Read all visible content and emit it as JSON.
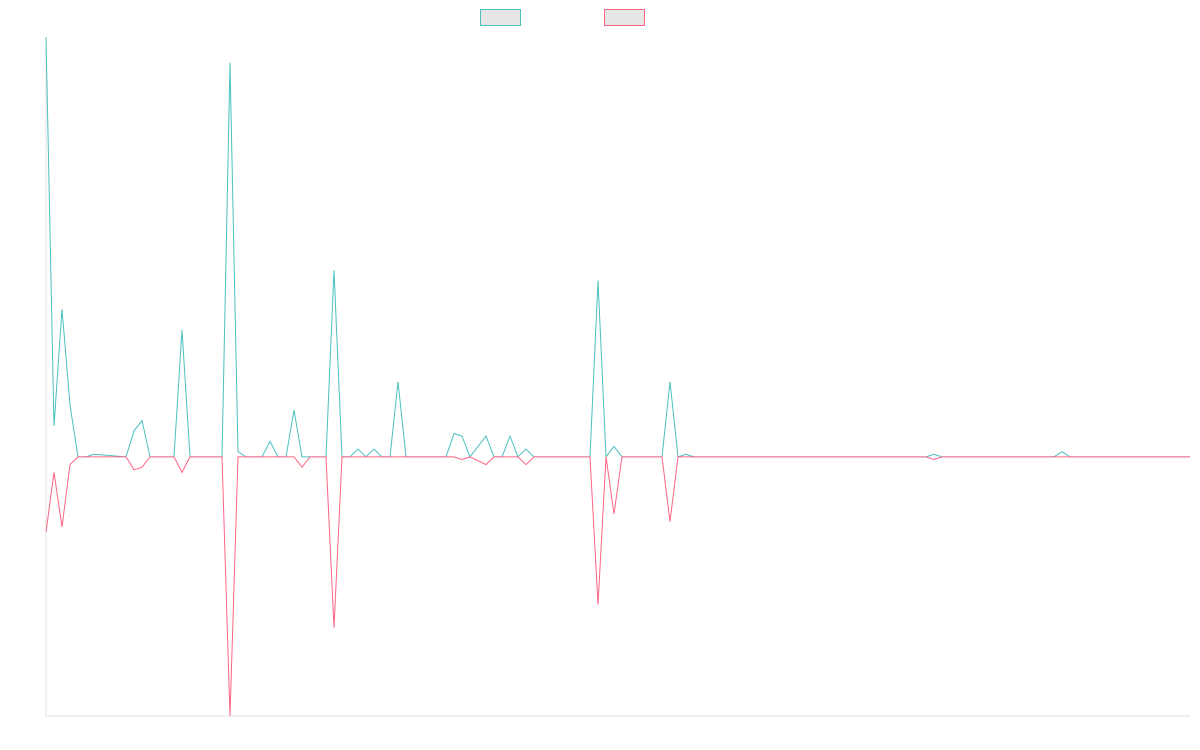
{
  "chart_data": {
    "type": "line",
    "title": "",
    "xlabel": "",
    "ylabel": "",
    "grid": false,
    "legend_position": "top-center",
    "ylim": [
      -100,
      162
    ],
    "x_count": 143,
    "series": [
      {
        "color": "#4bc0c0",
        "fill": "#e6e6e6",
        "points": [
          [
            0,
            162
          ],
          [
            1,
            12
          ],
          [
            2,
            57
          ],
          [
            3,
            20
          ],
          [
            4,
            0
          ],
          [
            5,
            0
          ],
          [
            6,
            1
          ],
          [
            10,
            0
          ],
          [
            11,
            10
          ],
          [
            12,
            14
          ],
          [
            13,
            0
          ],
          [
            16,
            0
          ],
          [
            17,
            49
          ],
          [
            18,
            0
          ],
          [
            19,
            0
          ],
          [
            20,
            0
          ],
          [
            22,
            0
          ],
          [
            23,
            152
          ],
          [
            24,
            2
          ],
          [
            25,
            0
          ],
          [
            27,
            0
          ],
          [
            28,
            6
          ],
          [
            29,
            0
          ],
          [
            30,
            0
          ],
          [
            31,
            18
          ],
          [
            32,
            0
          ],
          [
            35,
            0
          ],
          [
            36,
            72
          ],
          [
            37,
            0
          ],
          [
            38,
            0
          ],
          [
            39,
            3
          ],
          [
            40,
            0
          ],
          [
            41,
            3
          ],
          [
            42,
            0
          ],
          [
            43,
            0
          ],
          [
            44,
            29
          ],
          [
            45,
            0
          ],
          [
            50,
            0
          ],
          [
            51,
            9
          ],
          [
            52,
            8
          ],
          [
            53,
            0
          ],
          [
            54,
            4
          ],
          [
            55,
            8
          ],
          [
            56,
            0
          ],
          [
            57,
            0
          ],
          [
            58,
            8
          ],
          [
            59,
            0
          ],
          [
            60,
            3
          ],
          [
            61,
            0
          ],
          [
            68,
            0
          ],
          [
            69,
            68
          ],
          [
            70,
            0
          ],
          [
            71,
            4
          ],
          [
            72,
            0
          ],
          [
            77,
            0
          ],
          [
            78,
            29
          ],
          [
            79,
            0
          ],
          [
            80,
            1
          ],
          [
            81,
            0
          ],
          [
            110,
            0
          ],
          [
            111,
            1
          ],
          [
            112,
            0
          ],
          [
            126,
            0
          ],
          [
            127,
            2
          ],
          [
            128,
            0
          ],
          [
            143,
            0
          ]
        ]
      },
      {
        "color": "#ff6384",
        "fill": "#e6e6e6",
        "points": [
          [
            0,
            -29
          ],
          [
            1,
            -6
          ],
          [
            2,
            -27
          ],
          [
            3,
            -3
          ],
          [
            4,
            0
          ],
          [
            10,
            0
          ],
          [
            11,
            -5
          ],
          [
            12,
            -4
          ],
          [
            13,
            0
          ],
          [
            16,
            0
          ],
          [
            17,
            -6
          ],
          [
            18,
            0
          ],
          [
            22,
            0
          ],
          [
            23,
            -100
          ],
          [
            24,
            0
          ],
          [
            31,
            0
          ],
          [
            32,
            -4
          ],
          [
            33,
            0
          ],
          [
            35,
            0
          ],
          [
            36,
            -66
          ],
          [
            37,
            0
          ],
          [
            51,
            0
          ],
          [
            52,
            -1
          ],
          [
            53,
            0
          ],
          [
            55,
            -3
          ],
          [
            56,
            0
          ],
          [
            59,
            0
          ],
          [
            60,
            -3
          ],
          [
            61,
            0
          ],
          [
            68,
            0
          ],
          [
            69,
            -57
          ],
          [
            70,
            0
          ],
          [
            71,
            -22
          ],
          [
            72,
            0
          ],
          [
            77,
            0
          ],
          [
            78,
            -25
          ],
          [
            79,
            0
          ],
          [
            110,
            0
          ],
          [
            111,
            -1
          ],
          [
            112,
            0
          ],
          [
            143,
            0
          ]
        ]
      }
    ]
  }
}
